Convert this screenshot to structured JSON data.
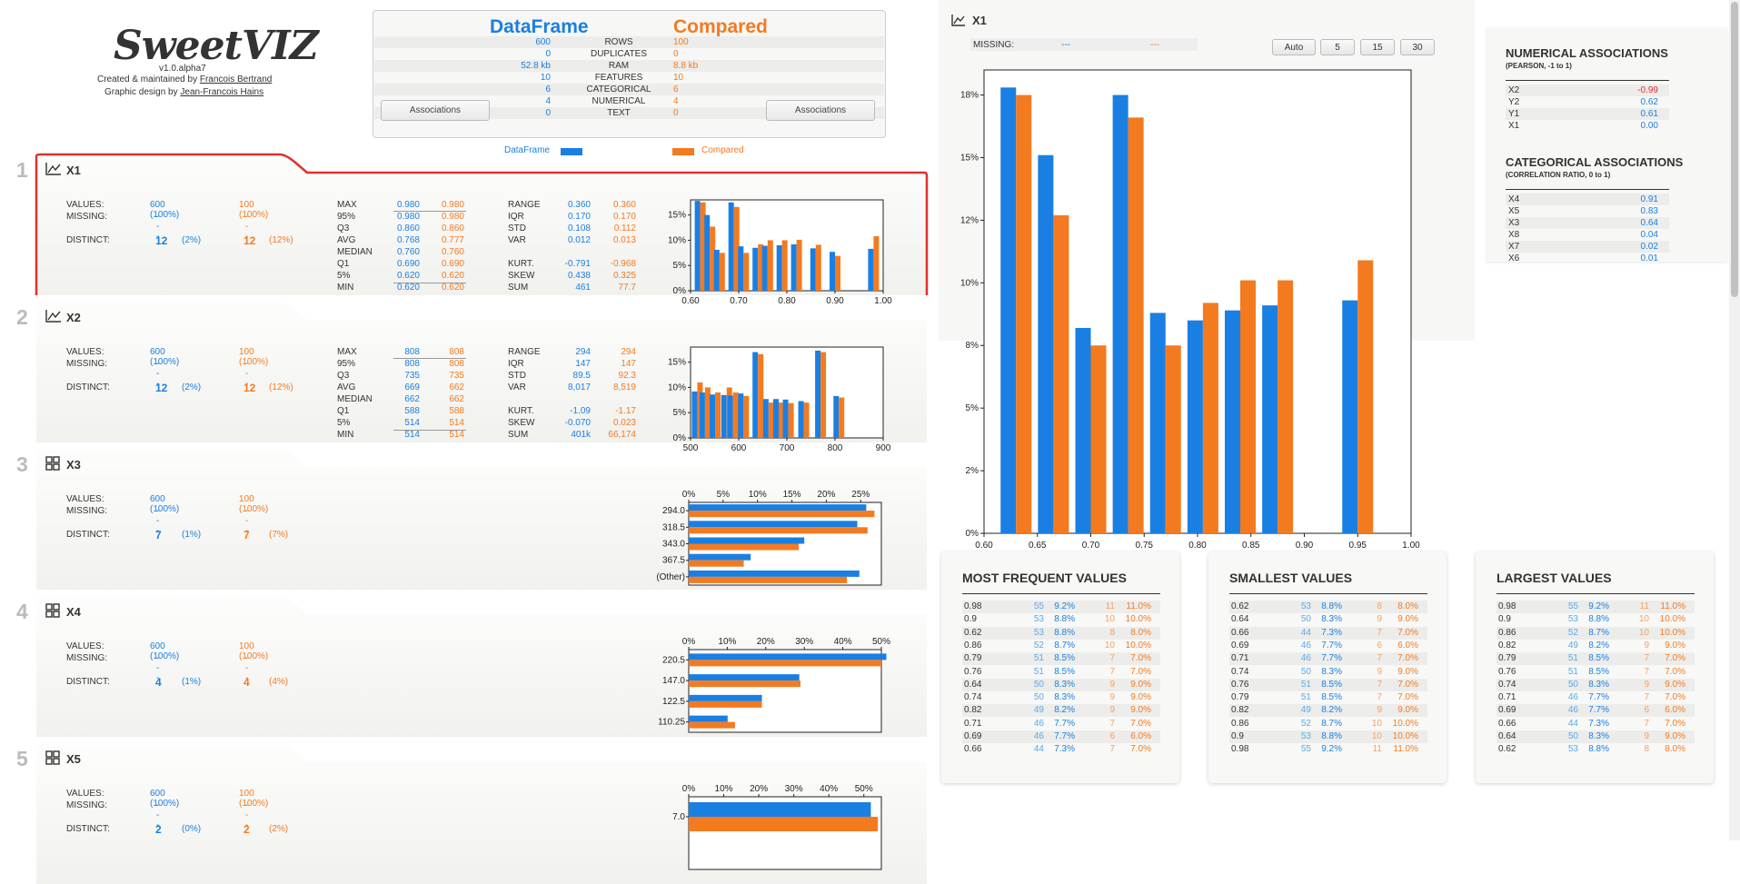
{
  "app": {
    "logo": "SweetVIZ",
    "version": "v1.0.alpha7",
    "created_prefix": "Created & maintained by ",
    "author": "Francois Bertrand",
    "design_prefix": "Graphic design by ",
    "designer": "Jean-Francois Hains"
  },
  "header": {
    "left_title": "DataFrame",
    "right_title": "Compared",
    "assoc_label": "Associations",
    "rows": [
      {
        "l": "600",
        "k": "ROWS",
        "r": "100"
      },
      {
        "l": "0",
        "k": "DUPLICATES",
        "r": "0"
      },
      {
        "l": "52.8 kb",
        "k": "RAM",
        "r": "8.8 kb"
      },
      {
        "l": "10",
        "k": "FEATURES",
        "r": "10"
      },
      {
        "l": "6",
        "k": "CATEGORICAL",
        "r": "6"
      },
      {
        "l": "4",
        "k": "NUMERICAL",
        "r": "4"
      },
      {
        "l": "0",
        "k": "TEXT",
        "r": "0"
      }
    ],
    "legend_left": "DataFrame",
    "legend_right": "Compared"
  },
  "features": [
    {
      "num": "1",
      "name": "X1",
      "kind": "numeric",
      "values": "600 (100%)",
      "values_c": "100 (100%)",
      "missing": "---",
      "missing_c": "---",
      "distinct": "12",
      "distinct_pct": "(2%)",
      "distinct_c": "12",
      "distinct_pct_c": "(12%)",
      "stats1": [
        [
          "MAX",
          "0.980",
          "0.980"
        ],
        [
          "95%",
          "0.980",
          "0.980"
        ],
        [
          "Q3",
          "0.860",
          "0.860"
        ],
        [
          "AVG",
          "0.768",
          "0.777"
        ],
        [
          "MEDIAN",
          "0.760",
          "0.760"
        ],
        [
          "Q1",
          "0.690",
          "0.690"
        ],
        [
          "5%",
          "0.620",
          "0.620"
        ],
        [
          "MIN",
          "0.620",
          "0.620"
        ]
      ],
      "stats2": [
        [
          "RANGE",
          "0.360",
          "0.360"
        ],
        [
          "IQR",
          "0.170",
          "0.170"
        ],
        [
          "STD",
          "0.108",
          "0.112"
        ],
        [
          "VAR",
          "0.012",
          "0.013"
        ],
        [
          "",
          "",
          " "
        ],
        [
          "KURT.",
          "-0.791",
          "-0.968"
        ],
        [
          "SKEW",
          "0.438",
          "0.325"
        ],
        [
          "SUM",
          "461",
          "77.7"
        ]
      ]
    },
    {
      "num": "2",
      "name": "X2",
      "kind": "numeric",
      "values": "600 (100%)",
      "values_c": "100 (100%)",
      "missing": "---",
      "missing_c": "---",
      "distinct": "12",
      "distinct_pct": "(2%)",
      "distinct_c": "12",
      "distinct_pct_c": "(12%)",
      "stats1": [
        [
          "MAX",
          "808",
          "808"
        ],
        [
          "95%",
          "808",
          "808"
        ],
        [
          "Q3",
          "735",
          "735"
        ],
        [
          "AVG",
          "669",
          "662"
        ],
        [
          "MEDIAN",
          "662",
          "662"
        ],
        [
          "Q1",
          "588",
          "588"
        ],
        [
          "5%",
          "514",
          "514"
        ],
        [
          "MIN",
          "514",
          "514"
        ]
      ],
      "stats2": [
        [
          "RANGE",
          "294",
          "294"
        ],
        [
          "IQR",
          "147",
          "147"
        ],
        [
          "STD",
          "89.5",
          "92.3"
        ],
        [
          "VAR",
          "8,017",
          "8,519"
        ],
        [
          "",
          "",
          ""
        ],
        [
          "KURT.",
          "-1.09",
          "-1.17"
        ],
        [
          "SKEW",
          "-0.070",
          "0.023"
        ],
        [
          "SUM",
          "401k",
          "66,174"
        ]
      ]
    },
    {
      "num": "3",
      "name": "X3",
      "kind": "categorical",
      "values": "600 (100%)",
      "values_c": "100 (100%)",
      "missing": "---",
      "missing_c": "---",
      "distinct": "7",
      "distinct_pct": "(1%)",
      "distinct_c": "7",
      "distinct_pct_c": "(7%)"
    },
    {
      "num": "4",
      "name": "X4",
      "kind": "categorical",
      "values": "600 (100%)",
      "values_c": "100 (100%)",
      "missing": "---",
      "missing_c": "---",
      "distinct": "4",
      "distinct_pct": "(1%)",
      "distinct_c": "4",
      "distinct_pct_c": "(4%)"
    },
    {
      "num": "5",
      "name": "X5",
      "kind": "categorical",
      "values": "600 (100%)",
      "values_c": "100 (100%)",
      "missing": "---",
      "missing_c": "---",
      "distinct": "2",
      "distinct_pct": "(0%)",
      "distinct_c": "2",
      "distinct_pct_c": "(2%)"
    }
  ],
  "labels": {
    "values": "VALUES:",
    "missing": "MISSING:",
    "distinct": "DISTINCT:"
  },
  "detail": {
    "title": "X1",
    "missing_label": "MISSING:",
    "missing": "---",
    "missing_c": "---",
    "bins": [
      "Auto",
      "5",
      "15",
      "30"
    ],
    "freq_title": "MOST FREQUENT VALUES",
    "small_title": "SMALLEST VALUES",
    "large_title": "LARGEST VALUES",
    "freq": [
      [
        "0.98",
        "55",
        "9.2%",
        "11",
        "11.0%"
      ],
      [
        "0.9",
        "53",
        "8.8%",
        "10",
        "10.0%"
      ],
      [
        "0.62",
        "53",
        "8.8%",
        "8",
        "8.0%"
      ],
      [
        "0.86",
        "52",
        "8.7%",
        "10",
        "10.0%"
      ],
      [
        "0.79",
        "51",
        "8.5%",
        "7",
        "7.0%"
      ],
      [
        "0.76",
        "51",
        "8.5%",
        "7",
        "7.0%"
      ],
      [
        "0.64",
        "50",
        "8.3%",
        "9",
        "9.0%"
      ],
      [
        "0.74",
        "50",
        "8.3%",
        "9",
        "9.0%"
      ],
      [
        "0.82",
        "49",
        "8.2%",
        "9",
        "9.0%"
      ],
      [
        "0.71",
        "46",
        "7.7%",
        "7",
        "7.0%"
      ],
      [
        "0.69",
        "46",
        "7.7%",
        "6",
        "6.0%"
      ],
      [
        "0.66",
        "44",
        "7.3%",
        "7",
        "7.0%"
      ]
    ],
    "small": [
      [
        "0.62",
        "53",
        "8.8%",
        "8",
        "8.0%"
      ],
      [
        "0.64",
        "50",
        "8.3%",
        "9",
        "9.0%"
      ],
      [
        "0.66",
        "44",
        "7.3%",
        "7",
        "7.0%"
      ],
      [
        "0.69",
        "46",
        "7.7%",
        "6",
        "6.0%"
      ],
      [
        "0.71",
        "46",
        "7.7%",
        "7",
        "7.0%"
      ],
      [
        "0.74",
        "50",
        "8.3%",
        "9",
        "9.0%"
      ],
      [
        "0.76",
        "51",
        "8.5%",
        "7",
        "7.0%"
      ],
      [
        "0.79",
        "51",
        "8.5%",
        "7",
        "7.0%"
      ],
      [
        "0.82",
        "49",
        "8.2%",
        "9",
        "9.0%"
      ],
      [
        "0.86",
        "52",
        "8.7%",
        "10",
        "10.0%"
      ],
      [
        "0.9",
        "53",
        "8.8%",
        "10",
        "10.0%"
      ],
      [
        "0.98",
        "55",
        "9.2%",
        "11",
        "11.0%"
      ]
    ],
    "large": [
      [
        "0.98",
        "55",
        "9.2%",
        "11",
        "11.0%"
      ],
      [
        "0.9",
        "53",
        "8.8%",
        "10",
        "10.0%"
      ],
      [
        "0.86",
        "52",
        "8.7%",
        "10",
        "10.0%"
      ],
      [
        "0.82",
        "49",
        "8.2%",
        "9",
        "9.0%"
      ],
      [
        "0.79",
        "51",
        "8.5%",
        "7",
        "7.0%"
      ],
      [
        "0.76",
        "51",
        "8.5%",
        "7",
        "7.0%"
      ],
      [
        "0.74",
        "50",
        "8.3%",
        "9",
        "9.0%"
      ],
      [
        "0.71",
        "46",
        "7.7%",
        "7",
        "7.0%"
      ],
      [
        "0.69",
        "46",
        "7.7%",
        "6",
        "6.0%"
      ],
      [
        "0.66",
        "44",
        "7.3%",
        "7",
        "7.0%"
      ],
      [
        "0.64",
        "50",
        "8.3%",
        "9",
        "9.0%"
      ],
      [
        "0.62",
        "53",
        "8.8%",
        "8",
        "8.0%"
      ]
    ]
  },
  "associations": {
    "num_title": "NUMERICAL ASSOCIATIONS",
    "num_sub": "(PEARSON, -1 to 1)",
    "num": [
      [
        "X2",
        "-0.99",
        "neg"
      ],
      [
        "Y2",
        "0.62",
        "pos"
      ],
      [
        "Y1",
        "0.61",
        "pos"
      ],
      [
        "X1",
        "0.00",
        "pos"
      ]
    ],
    "cat_title": "CATEGORICAL ASSOCIATIONS",
    "cat_sub": "(CORRELATION RATIO, 0 to 1)",
    "cat": [
      [
        "X4",
        "0.91"
      ],
      [
        "X5",
        "0.83"
      ],
      [
        "X3",
        "0.64"
      ],
      [
        "X8",
        "0.04"
      ],
      [
        "X7",
        "0.02"
      ],
      [
        "X6",
        "0.01"
      ]
    ]
  },
  "colors": {
    "blue": "#1a7fe3",
    "orange": "#f47a20",
    "red": "#e03030"
  },
  "chart_data": [
    {
      "id": "x1_hist_small",
      "type": "bar",
      "xlim": [
        0.6,
        1.0
      ],
      "ylim": [
        0,
        18
      ],
      "ylabel": "%",
      "xticks": [
        "0.60",
        "0.70",
        "0.80",
        "0.90",
        "1.00"
      ],
      "yticks": [
        "0%",
        "5%",
        "10%",
        "15%"
      ],
      "x": [
        0.62,
        0.64,
        0.66,
        0.69,
        0.71,
        0.74,
        0.76,
        0.79,
        0.82,
        0.86,
        0.9,
        0.98
      ],
      "series": [
        {
          "name": "DataFrame",
          "values": [
            17.8,
            15.0,
            8.1,
            17.5,
            8.8,
            8.5,
            8.9,
            9.0,
            9.2,
            8.4,
            7.7,
            8.3
          ]
        },
        {
          "name": "Compared",
          "values": [
            17.5,
            12.7,
            7.5,
            16.6,
            7.5,
            9.2,
            10.0,
            10.0,
            10.1,
            9.1,
            6.9,
            10.8
          ]
        }
      ]
    },
    {
      "id": "x2_hist_small",
      "type": "bar",
      "xlim": [
        500,
        900
      ],
      "ylim": [
        0,
        18
      ],
      "xticks": [
        "500",
        "600",
        "700",
        "800",
        "900"
      ],
      "yticks": [
        "0%",
        "5%",
        "10%",
        "15%"
      ],
      "x": [
        514,
        530,
        551,
        575,
        588,
        610,
        640,
        662,
        683,
        703,
        735,
        770,
        808
      ],
      "series": [
        {
          "name": "DataFrame",
          "values": [
            9.2,
            9.0,
            8.6,
            8.5,
            8.4,
            8.8,
            17.0,
            7.7,
            7.7,
            7.6,
            7.3,
            17.3,
            8.3
          ]
        },
        {
          "name": "Compared",
          "values": [
            11.0,
            10.0,
            9.0,
            10.0,
            9.0,
            8.3,
            16.6,
            7.0,
            7.0,
            6.9,
            7.0,
            17.0,
            8.0
          ]
        }
      ]
    },
    {
      "id": "x3_cat",
      "type": "barh",
      "xlim": [
        0,
        28
      ],
      "xticks": [
        "0%",
        "5%",
        "10%",
        "15%",
        "20%",
        "25%"
      ],
      "categories": [
        "294.0",
        "318.5",
        "343.0",
        "367.5",
        "(Other)"
      ],
      "series": [
        {
          "name": "DataFrame",
          "values": [
            25.8,
            24.5,
            16.8,
            9.0,
            24.8
          ]
        },
        {
          "name": "Compared",
          "values": [
            27.0,
            26.0,
            16.0,
            8.0,
            23.0
          ]
        }
      ]
    },
    {
      "id": "x4_cat",
      "type": "barh",
      "xlim": [
        0,
        50
      ],
      "xticks": [
        "0%",
        "10%",
        "20%",
        "30%",
        "40%",
        "50%"
      ],
      "categories": [
        "220.5",
        "147.0",
        "122.5",
        "110.25"
      ],
      "series": [
        {
          "name": "DataFrame",
          "values": [
            51.3,
            28.7,
            19.0,
            10.1
          ]
        },
        {
          "name": "Compared",
          "values": [
            50.0,
            29.0,
            19.0,
            12.0
          ]
        }
      ]
    },
    {
      "id": "x5_cat",
      "type": "barh",
      "xlim": [
        0,
        55
      ],
      "xticks": [
        "0%",
        "10%",
        "20%",
        "30%",
        "40%",
        "50%"
      ],
      "categories": [
        "7.0"
      ],
      "series": [
        {
          "name": "DataFrame",
          "values": [
            52.0
          ]
        },
        {
          "name": "Compared",
          "values": [
            54.0
          ]
        }
      ]
    },
    {
      "id": "x1_hist_large",
      "type": "bar",
      "xlim": [
        0.6,
        1.0
      ],
      "ylim": [
        0,
        18.5
      ],
      "xticks": [
        "0.60",
        "0.65",
        "0.70",
        "0.75",
        "0.80",
        "0.85",
        "0.90",
        "0.95",
        "1.00"
      ],
      "yticks": [
        "0%",
        "2%",
        "5%",
        "8%",
        "10%",
        "12%",
        "15%",
        "18%"
      ],
      "x": [
        0.63,
        0.665,
        0.7,
        0.735,
        0.77,
        0.805,
        0.84,
        0.875,
        0.95
      ],
      "series": [
        {
          "name": "DataFrame",
          "values": [
            17.8,
            15.1,
            8.2,
            17.5,
            8.8,
            8.5,
            8.9,
            9.1,
            9.3
          ]
        },
        {
          "name": "Compared",
          "values": [
            17.5,
            12.7,
            7.5,
            16.6,
            7.5,
            9.2,
            10.1,
            10.1,
            10.9
          ]
        }
      ]
    }
  ]
}
